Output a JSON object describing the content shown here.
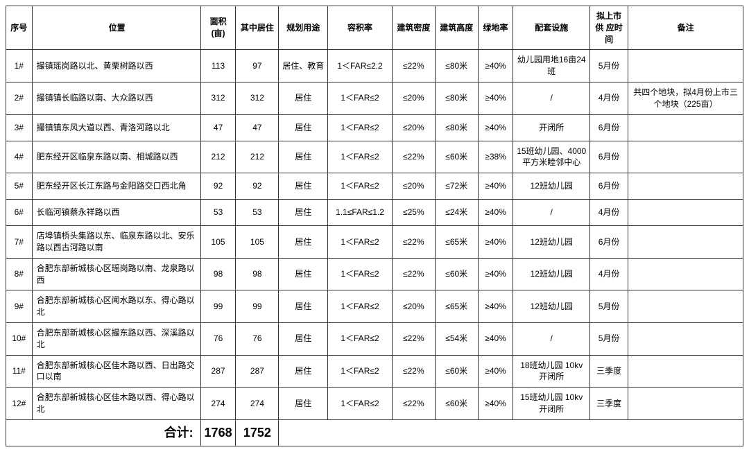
{
  "table": {
    "columns": [
      "序号",
      "位置",
      "面积\n(亩)",
      "其中居住",
      "规划用途",
      "容积率",
      "建筑密度",
      "建筑高度",
      "绿地率",
      "配套设施",
      "拟上市供\n应时间",
      "备注"
    ],
    "rows": [
      {
        "seq": "1#",
        "loc": "撮镇瑶岗路以北、黄栗树路以西",
        "area": "113",
        "res": "97",
        "use": "居住、教育",
        "far": "1＜FAR≤2.2",
        "density": "≤22%",
        "height": "≤80米",
        "green": "≥40%",
        "facility": "幼儿园用地16亩24班",
        "time": "5月份",
        "remark": ""
      },
      {
        "seq": "2#",
        "loc": "撮镇镇长临路以南、大众路以西",
        "area": "312",
        "res": "312",
        "use": "居住",
        "far": "1＜FAR≤2",
        "density": "≤20%",
        "height": "≤80米",
        "green": "≥40%",
        "facility": "/",
        "time": "4月份",
        "remark": "共四个地块，拟4月份上市三个地块（225亩）"
      },
      {
        "seq": "3#",
        "loc": "撮镇镇东风大道以西、青洛河路以北",
        "area": "47",
        "res": "47",
        "use": "居住",
        "far": "1＜FAR≤2",
        "density": "≤20%",
        "height": "≤80米",
        "green": "≥40%",
        "facility": "开闭所",
        "time": "6月份",
        "remark": ""
      },
      {
        "seq": "4#",
        "loc": "肥东经开区临泉东路以南、相城路以西",
        "area": "212",
        "res": "212",
        "use": "居住",
        "far": "1＜FAR≤2",
        "density": "≤22%",
        "height": "≤60米",
        "green": "≥38%",
        "facility": "15班幼儿园、4000平方米睦邻中心",
        "time": "6月份",
        "remark": ""
      },
      {
        "seq": "5#",
        "loc": "肥东经开区长江东路与金阳路交口西北角",
        "area": "92",
        "res": "92",
        "use": "居住",
        "far": "1＜FAR≤2",
        "density": "≤20%",
        "height": "≤72米",
        "green": "≥40%",
        "facility": "12班幼儿园",
        "time": "6月份",
        "remark": ""
      },
      {
        "seq": "6#",
        "loc": "长临河镇蔡永祥路以西",
        "area": "53",
        "res": "53",
        "use": "居住",
        "far": "1.1≤FAR≤1.2",
        "density": "≤25%",
        "height": "≤24米",
        "green": "≥40%",
        "facility": "/",
        "time": "4月份",
        "remark": ""
      },
      {
        "seq": "7#",
        "loc": "店埠镇桥头集路以东、临泉东路以北、安乐路以西古河路以南",
        "area": "105",
        "res": "105",
        "use": "居住",
        "far": "1＜FAR≤2",
        "density": "≤22%",
        "height": "≤65米",
        "green": "≥40%",
        "facility": "12班幼儿园",
        "time": "6月份",
        "remark": ""
      },
      {
        "seq": "8#",
        "loc": "合肥东部新城核心区瑶岗路以南、龙泉路以西",
        "area": "98",
        "res": "98",
        "use": "居住",
        "far": "1＜FAR≤2",
        "density": "≤22%",
        "height": "≤60米",
        "green": "≥40%",
        "facility": "12班幼儿园",
        "time": "4月份",
        "remark": ""
      },
      {
        "seq": "9#",
        "loc": "合肥东部新城核心区闻水路以东、得心路以北",
        "area": "99",
        "res": "99",
        "use": "居住",
        "far": "1＜FAR≤2",
        "density": "≤20%",
        "height": "≤65米",
        "green": "≥40%",
        "facility": "12班幼儿园",
        "time": "5月份",
        "remark": ""
      },
      {
        "seq": "10#",
        "loc": "合肥东部新城核心区撮东路以西、深溪路以北",
        "area": "76",
        "res": "76",
        "use": "居住",
        "far": "1＜FAR≤2",
        "density": "≤22%",
        "height": "≤54米",
        "green": "≥40%",
        "facility": "/",
        "time": "5月份",
        "remark": ""
      },
      {
        "seq": "11#",
        "loc": "合肥东部新城核心区佳木路以西、日出路交口以南",
        "area": "287",
        "res": "287",
        "use": "居住",
        "far": "1＜FAR≤2",
        "density": "≤22%",
        "height": "≤60米",
        "green": "≥40%",
        "facility": "18班幼儿园 10kv开闭所",
        "time": "三季度",
        "remark": ""
      },
      {
        "seq": "12#",
        "loc": "合肥东部新城核心区佳木路以西、得心路以北",
        "area": "274",
        "res": "274",
        "use": "居住",
        "far": "1＜FAR≤2",
        "density": "≤22%",
        "height": "≤60米",
        "green": "≥40%",
        "facility": "15班幼儿园 10kv开闭所",
        "time": "三季度",
        "remark": ""
      }
    ],
    "total": {
      "label": "合计:",
      "area": "1768",
      "res": "1752"
    }
  }
}
